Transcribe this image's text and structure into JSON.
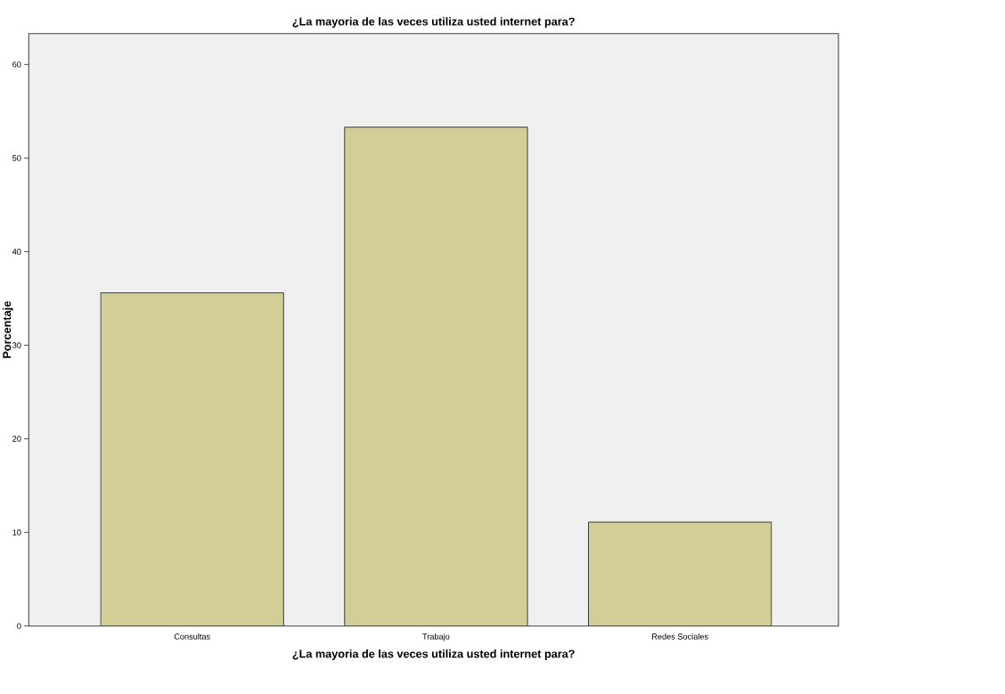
{
  "chart_data": {
    "type": "bar",
    "title": "¿La mayoria de las veces utiliza usted internet para?",
    "xlabel": "¿La mayoria de las veces utiliza usted internet para?",
    "ylabel": "Porcentaje",
    "categories": [
      "Consultas",
      "Trabajo",
      "Redes Sociales"
    ],
    "values": [
      35.6,
      53.3,
      11.1
    ],
    "color": "#d3ce97",
    "ylim": [
      0,
      63.3
    ],
    "yticks": [
      0,
      10,
      20,
      30,
      40,
      50,
      60
    ],
    "grid": false
  }
}
